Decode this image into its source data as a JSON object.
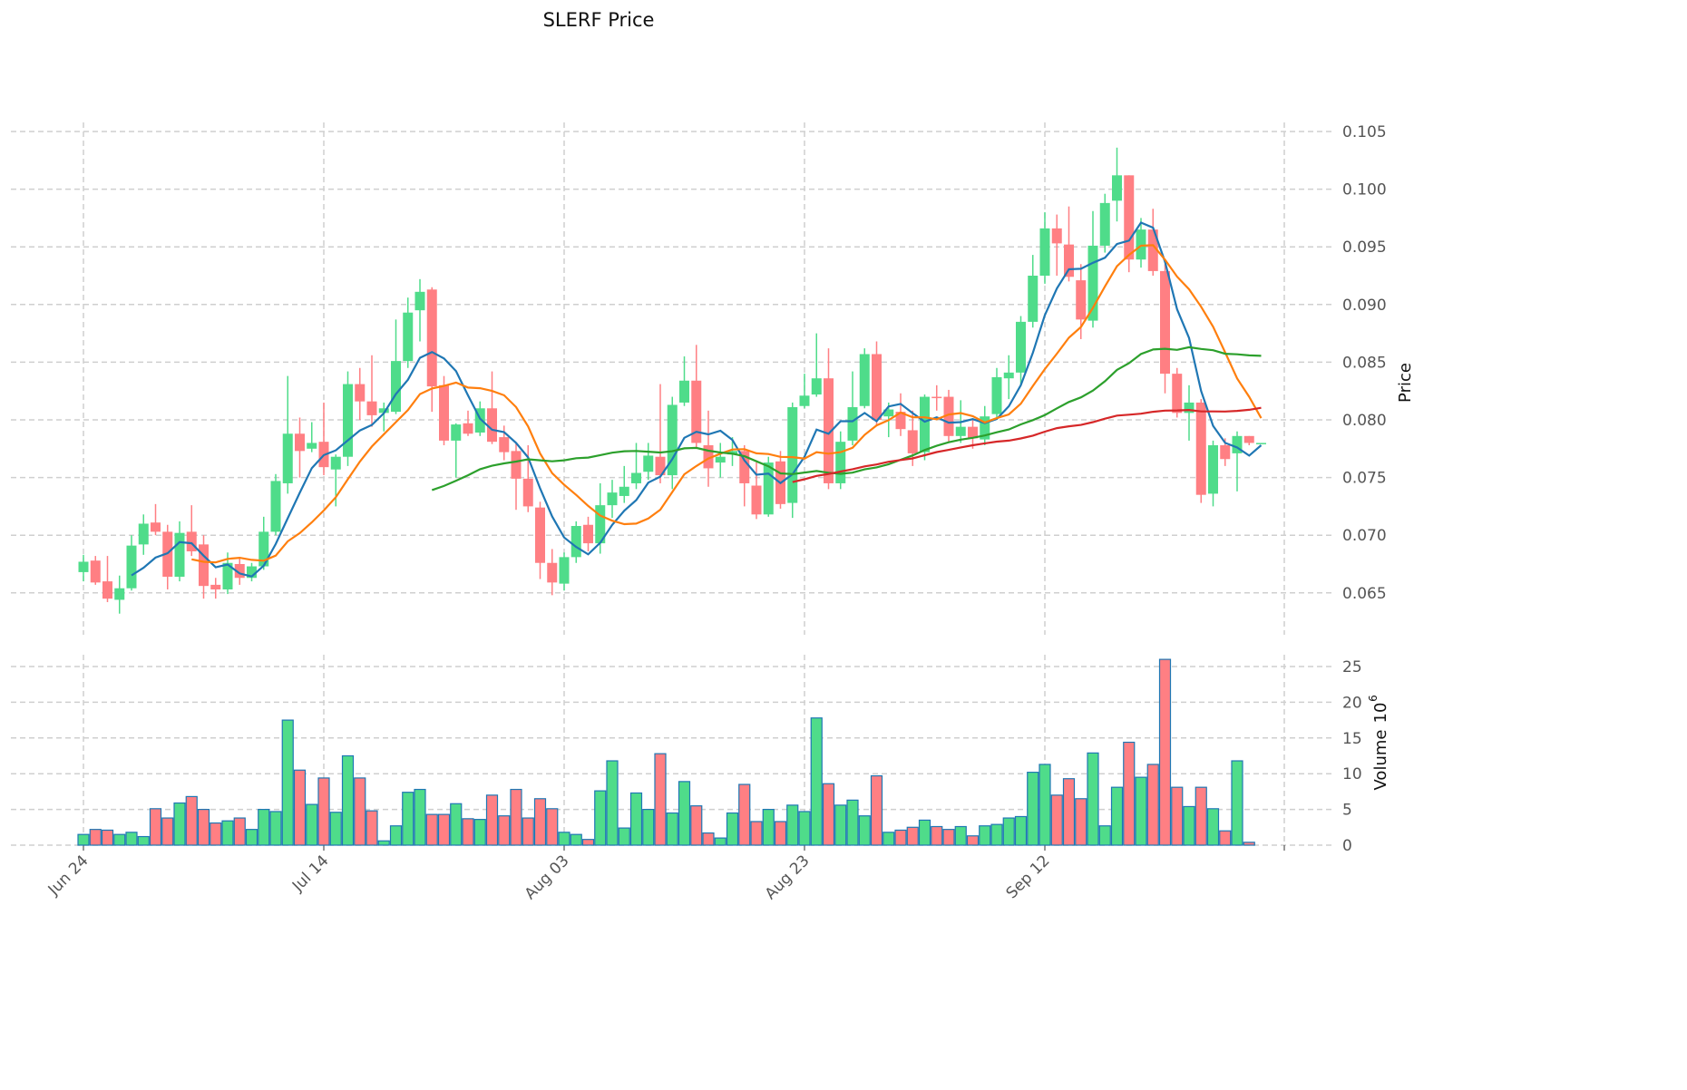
{
  "chart_data": {
    "type": "candlestick",
    "title": "SLERF Price",
    "ylabel_price": "Price",
    "ylabel_volume": "Volume",
    "volume_multiplier": "10",
    "volume_exponent": "6",
    "x_tick_labels": [
      {
        "index": 0,
        "label": "Jun 24"
      },
      {
        "index": 20,
        "label": "Jul 14"
      },
      {
        "index": 40,
        "label": "Aug 03"
      },
      {
        "index": 60,
        "label": "Aug 23"
      },
      {
        "index": 80,
        "label": "Sep 12"
      }
    ],
    "price_ticks": [
      "0.065",
      "0.070",
      "0.075",
      "0.080",
      "0.085",
      "0.090",
      "0.095",
      "0.100",
      "0.105"
    ],
    "volume_ticks": [
      "0",
      "5",
      "10",
      "15",
      "20",
      "25"
    ],
    "price_ylim": [
      0.0615,
      0.1058
    ],
    "volume_ylim": [
      0,
      27
    ],
    "grid": true,
    "colors": {
      "up": "#4fdc8a",
      "down": "#ff7f83",
      "volume_edge": "#1f77b4",
      "ma_short": "#1f77b4",
      "ma_mid": "#ff7f0e",
      "ma_long": "#2ca02c",
      "ma_longest": "#d62728"
    },
    "moving_averages": [
      5,
      10,
      30,
      60
    ],
    "ohlc": [
      [
        0.0668,
        0.0683,
        0.066,
        0.0677
      ],
      [
        0.0678,
        0.0682,
        0.0657,
        0.0659
      ],
      [
        0.066,
        0.0682,
        0.0642,
        0.0645
      ],
      [
        0.0644,
        0.0665,
        0.0632,
        0.0654
      ],
      [
        0.0654,
        0.07,
        0.0652,
        0.0691
      ],
      [
        0.0692,
        0.0718,
        0.0683,
        0.071
      ],
      [
        0.0711,
        0.0727,
        0.07,
        0.0703
      ],
      [
        0.0703,
        0.0709,
        0.0653,
        0.0664
      ],
      [
        0.0664,
        0.0712,
        0.066,
        0.0702
      ],
      [
        0.0703,
        0.0726,
        0.0682,
        0.0686
      ],
      [
        0.0692,
        0.07,
        0.0645,
        0.0656
      ],
      [
        0.0657,
        0.0663,
        0.0645,
        0.0653
      ],
      [
        0.0653,
        0.0685,
        0.0649,
        0.0676
      ],
      [
        0.0675,
        0.068,
        0.0657,
        0.0663
      ],
      [
        0.0663,
        0.0676,
        0.066,
        0.0673
      ],
      [
        0.0673,
        0.0716,
        0.067,
        0.0703
      ],
      [
        0.0703,
        0.0753,
        0.07,
        0.0747
      ],
      [
        0.0745,
        0.0838,
        0.0736,
        0.0788
      ],
      [
        0.0788,
        0.0802,
        0.075,
        0.0773
      ],
      [
        0.0775,
        0.0798,
        0.0772,
        0.078
      ],
      [
        0.0781,
        0.0815,
        0.0752,
        0.0759
      ],
      [
        0.0757,
        0.077,
        0.0725,
        0.0768
      ],
      [
        0.0768,
        0.0842,
        0.076,
        0.0831
      ],
      [
        0.0831,
        0.0845,
        0.08,
        0.0816
      ],
      [
        0.0816,
        0.0856,
        0.0794,
        0.0804
      ],
      [
        0.0806,
        0.0815,
        0.079,
        0.081
      ],
      [
        0.0807,
        0.0887,
        0.0805,
        0.0851
      ],
      [
        0.0851,
        0.0906,
        0.0845,
        0.0893
      ],
      [
        0.0895,
        0.0922,
        0.0868,
        0.0911
      ],
      [
        0.0913,
        0.0915,
        0.0807,
        0.0829
      ],
      [
        0.083,
        0.0838,
        0.0778,
        0.0782
      ],
      [
        0.0782,
        0.0797,
        0.075,
        0.0796
      ],
      [
        0.0797,
        0.0808,
        0.0786,
        0.0788
      ],
      [
        0.0789,
        0.0816,
        0.0786,
        0.081
      ],
      [
        0.081,
        0.0842,
        0.0779,
        0.0781
      ],
      [
        0.0785,
        0.0795,
        0.0765,
        0.0772
      ],
      [
        0.0773,
        0.078,
        0.0722,
        0.0749
      ],
      [
        0.0749,
        0.0778,
        0.072,
        0.0725
      ],
      [
        0.0724,
        0.0729,
        0.0662,
        0.0676
      ],
      [
        0.0676,
        0.0688,
        0.0648,
        0.0659
      ],
      [
        0.0658,
        0.0685,
        0.0652,
        0.0681
      ],
      [
        0.0681,
        0.0712,
        0.0676,
        0.0708
      ],
      [
        0.0709,
        0.0716,
        0.0686,
        0.0693
      ],
      [
        0.0693,
        0.0745,
        0.0684,
        0.0726
      ],
      [
        0.0726,
        0.0748,
        0.0715,
        0.0737
      ],
      [
        0.0734,
        0.076,
        0.0728,
        0.0742
      ],
      [
        0.0745,
        0.078,
        0.074,
        0.0754
      ],
      [
        0.0755,
        0.078,
        0.0748,
        0.0769
      ],
      [
        0.0768,
        0.0831,
        0.0745,
        0.0752
      ],
      [
        0.0752,
        0.082,
        0.074,
        0.0813
      ],
      [
        0.0815,
        0.0855,
        0.0812,
        0.0834
      ],
      [
        0.0834,
        0.0865,
        0.0776,
        0.078
      ],
      [
        0.0778,
        0.0808,
        0.0742,
        0.0758
      ],
      [
        0.0763,
        0.078,
        0.075,
        0.0768
      ],
      [
        0.077,
        0.0785,
        0.076,
        0.0773
      ],
      [
        0.0773,
        0.0778,
        0.0725,
        0.0745
      ],
      [
        0.0743,
        0.0763,
        0.0714,
        0.0718
      ],
      [
        0.0718,
        0.0768,
        0.0716,
        0.0763
      ],
      [
        0.0764,
        0.0773,
        0.0723,
        0.0727
      ],
      [
        0.0728,
        0.0815,
        0.0715,
        0.0811
      ],
      [
        0.0812,
        0.084,
        0.081,
        0.0821
      ],
      [
        0.0822,
        0.0875,
        0.082,
        0.0836
      ],
      [
        0.0836,
        0.0862,
        0.074,
        0.0745
      ],
      [
        0.0745,
        0.079,
        0.074,
        0.0781
      ],
      [
        0.0782,
        0.0842,
        0.0778,
        0.0811
      ],
      [
        0.0812,
        0.0862,
        0.081,
        0.0857
      ],
      [
        0.0857,
        0.0868,
        0.0795,
        0.08
      ],
      [
        0.0803,
        0.0815,
        0.0785,
        0.0809
      ],
      [
        0.0807,
        0.0823,
        0.0786,
        0.0792
      ],
      [
        0.0791,
        0.0808,
        0.076,
        0.0771
      ],
      [
        0.0772,
        0.0822,
        0.0765,
        0.082
      ],
      [
        0.082,
        0.083,
        0.0808,
        0.0819
      ],
      [
        0.082,
        0.0826,
        0.0781,
        0.0786
      ],
      [
        0.0786,
        0.0817,
        0.078,
        0.0794
      ],
      [
        0.0794,
        0.08,
        0.0775,
        0.0784
      ],
      [
        0.0783,
        0.0812,
        0.0778,
        0.0803
      ],
      [
        0.0805,
        0.0845,
        0.08,
        0.0837
      ],
      [
        0.0836,
        0.0856,
        0.0818,
        0.0841
      ],
      [
        0.0841,
        0.089,
        0.083,
        0.0885
      ],
      [
        0.0885,
        0.0943,
        0.088,
        0.0925
      ],
      [
        0.0925,
        0.098,
        0.0918,
        0.0966
      ],
      [
        0.0966,
        0.0978,
        0.0925,
        0.0953
      ],
      [
        0.0952,
        0.0985,
        0.092,
        0.0924
      ],
      [
        0.0921,
        0.0935,
        0.087,
        0.0887
      ],
      [
        0.0886,
        0.0981,
        0.088,
        0.0951
      ],
      [
        0.0951,
        0.0996,
        0.0945,
        0.0988
      ],
      [
        0.099,
        0.1036,
        0.0972,
        0.1012
      ],
      [
        0.1012,
        0.1012,
        0.0928,
        0.0939
      ],
      [
        0.0939,
        0.0975,
        0.0932,
        0.0965
      ],
      [
        0.0965,
        0.0983,
        0.0925,
        0.0929
      ],
      [
        0.0929,
        0.0935,
        0.0823,
        0.084
      ],
      [
        0.084,
        0.0845,
        0.0802,
        0.0806
      ],
      [
        0.0806,
        0.083,
        0.0782,
        0.0815
      ],
      [
        0.0815,
        0.0818,
        0.0728,
        0.0735
      ],
      [
        0.0736,
        0.0782,
        0.0725,
        0.0778
      ],
      [
        0.0778,
        0.0784,
        0.076,
        0.0766
      ],
      [
        0.0771,
        0.079,
        0.0738,
        0.0786
      ],
      [
        0.0786,
        0.0786,
        0.0778,
        0.078
      ],
      [
        0.078,
        0.078,
        0.078,
        0.078
      ]
    ],
    "volume_millions": [
      1.5,
      2.2,
      2.1,
      1.5,
      1.8,
      1.2,
      5.1,
      3.8,
      5.9,
      6.8,
      5.0,
      3.1,
      3.4,
      3.8,
      2.2,
      5.0,
      4.7,
      17.5,
      10.5,
      5.7,
      9.4,
      4.6,
      12.5,
      9.4,
      4.8,
      0.6,
      2.7,
      7.4,
      7.8,
      4.3,
      4.3,
      5.8,
      3.7,
      3.6,
      7.0,
      4.1,
      7.8,
      3.8,
      6.5,
      5.1,
      1.8,
      1.5,
      0.8,
      7.6,
      11.8,
      2.4,
      7.3,
      5.0,
      12.8,
      4.5,
      8.9,
      5.5,
      1.7,
      1.0,
      4.5,
      8.5,
      3.3,
      5.0,
      3.3,
      5.6,
      4.7,
      17.8,
      8.6,
      5.6,
      6.3,
      4.1,
      9.7,
      1.8,
      2.1,
      2.5,
      3.5,
      2.6,
      2.2,
      2.6,
      1.3,
      2.7,
      2.9,
      3.8,
      4.0,
      10.2,
      11.3,
      7.0,
      9.3,
      6.5,
      12.9,
      2.7,
      8.1,
      14.4,
      9.5,
      11.3,
      26.0,
      8.1,
      5.4,
      8.1,
      5.1,
      2.0,
      11.8,
      0.4,
      0
    ]
  }
}
